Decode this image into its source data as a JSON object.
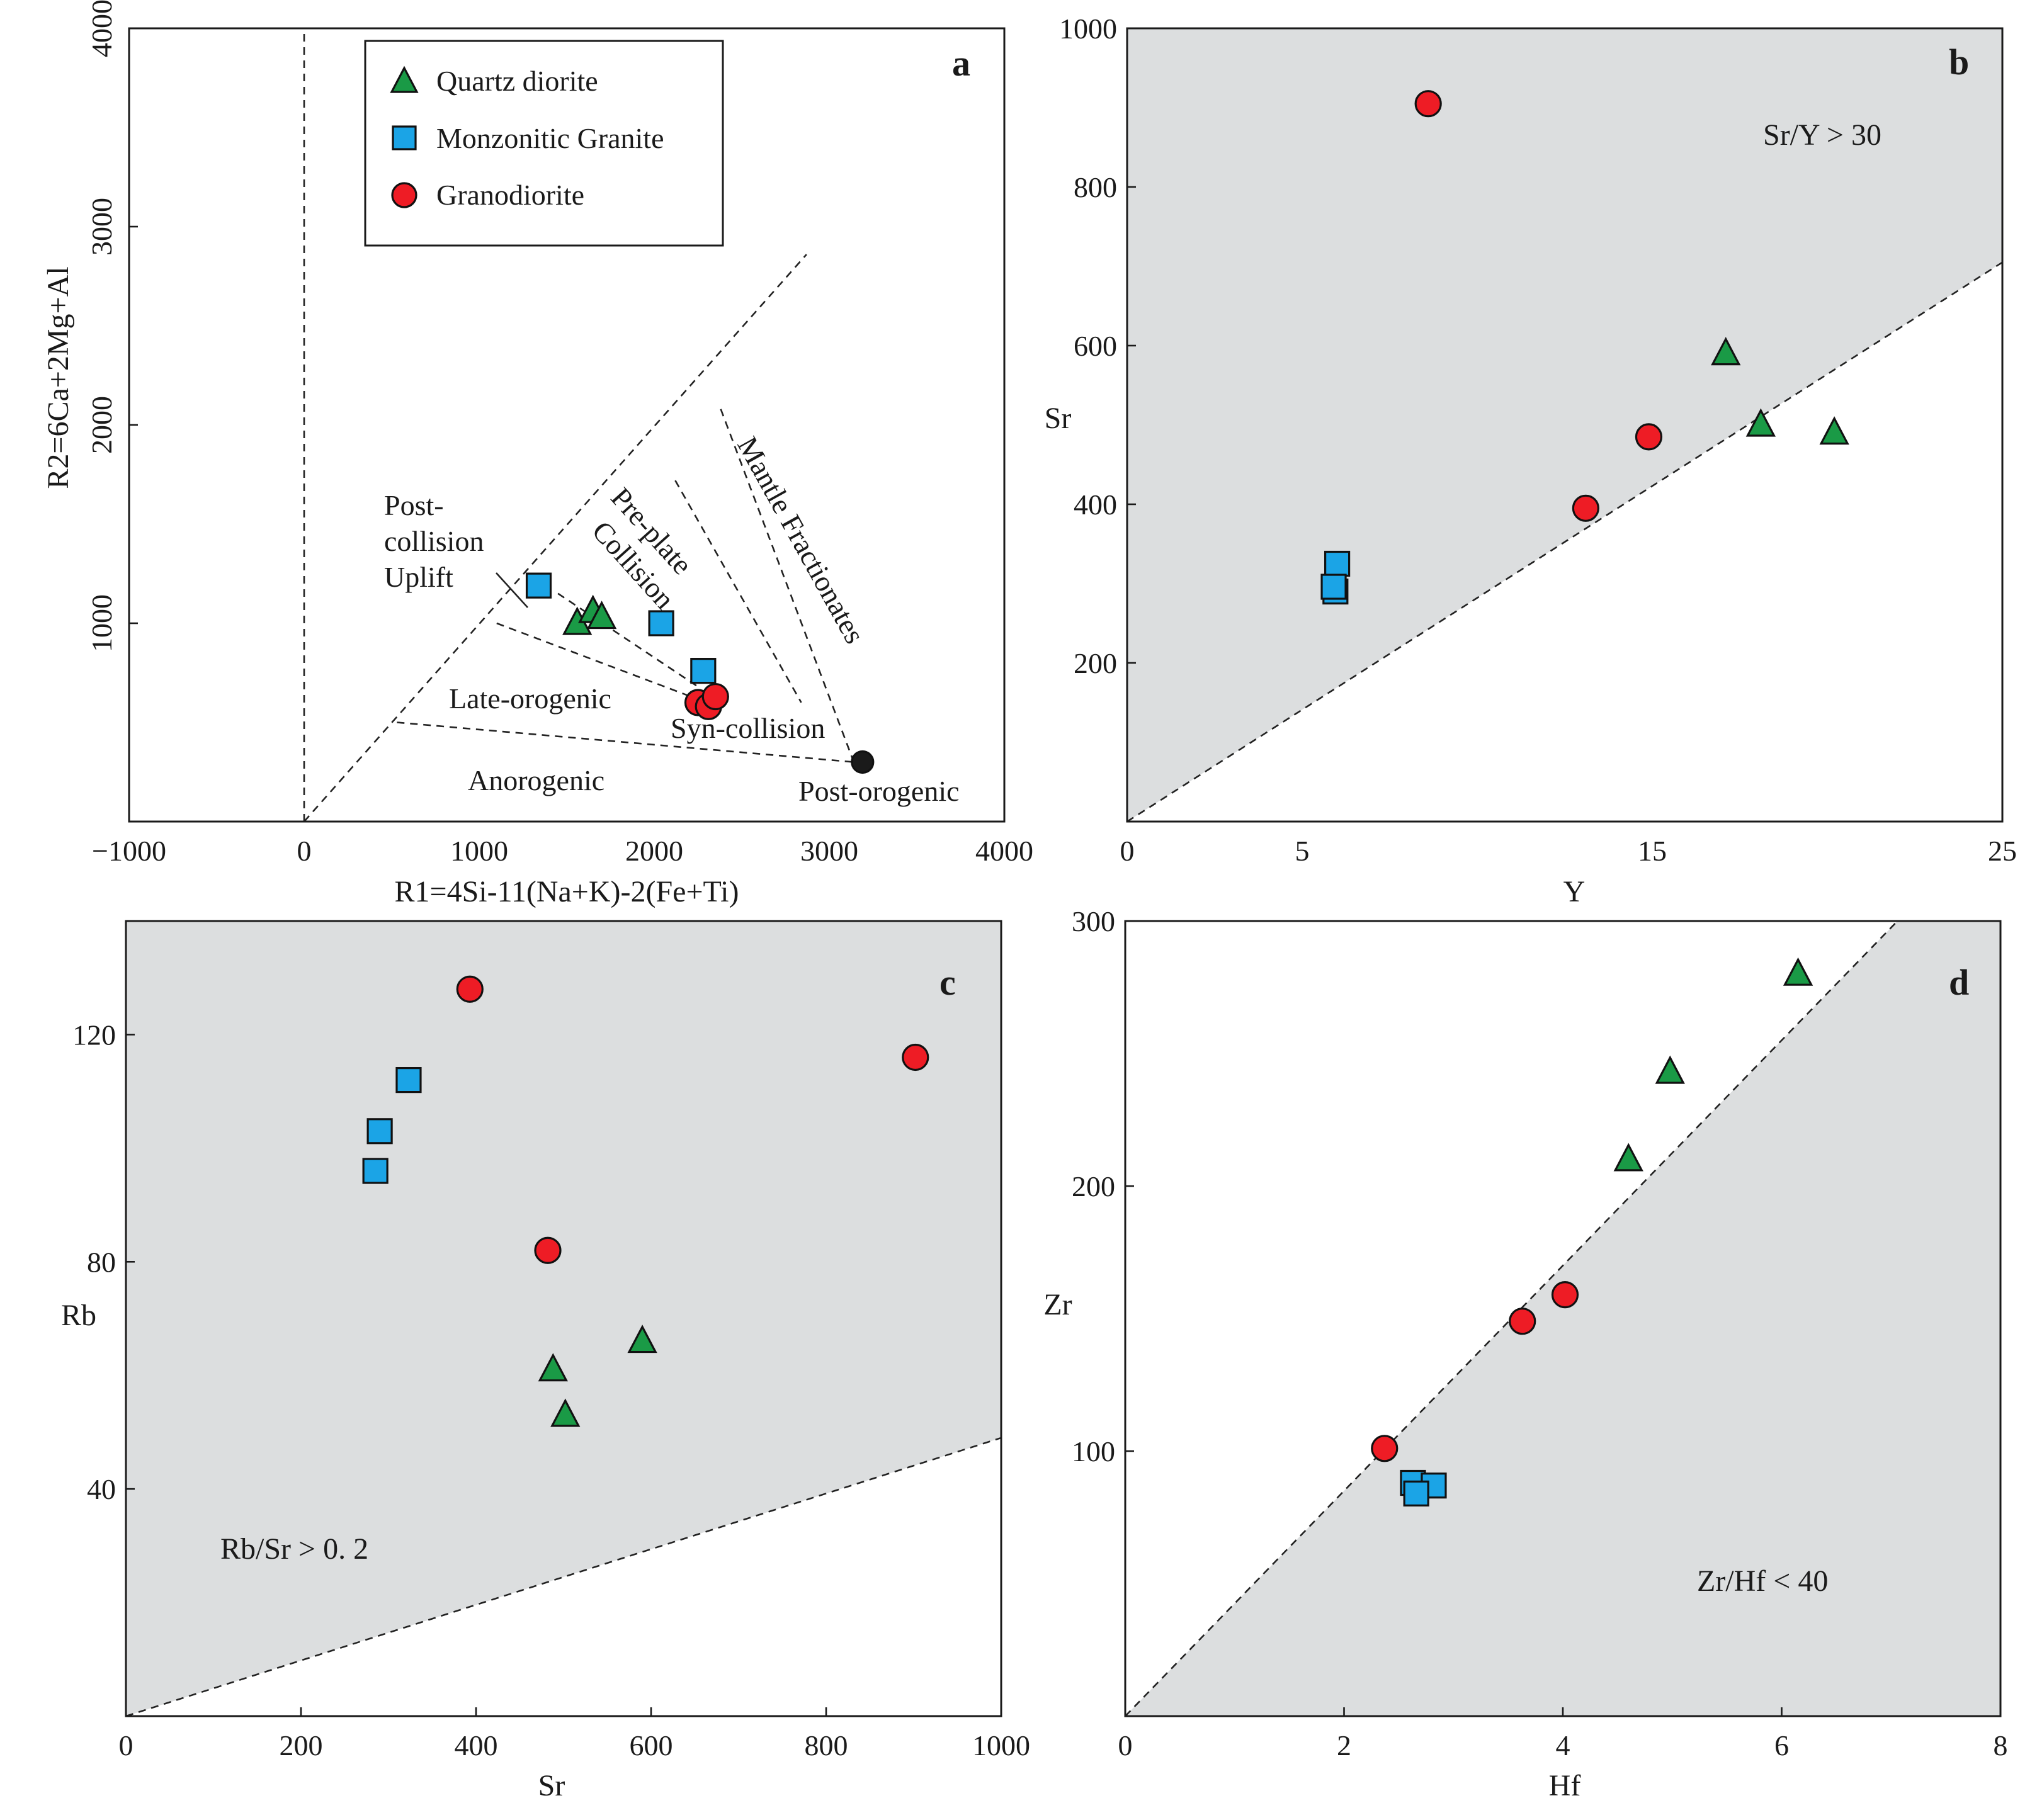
{
  "colors": {
    "quartz_diorite": "#1a9a46",
    "monzonitic_granite": "#1ba4e6",
    "granodiorite": "#ee1c25",
    "post_orogenic": "#1a1a1a",
    "shade": "#dcdedf"
  },
  "legend": {
    "items": [
      {
        "key": "quartz_diorite",
        "label": "Quartz diorite",
        "marker": "triangle-icon"
      },
      {
        "key": "monzonitic_granite",
        "label": "Monzonitic Granite",
        "marker": "square-icon"
      },
      {
        "key": "granodiorite",
        "label": "Granodiorite",
        "marker": "circle-icon"
      }
    ]
  },
  "chart_data": [
    {
      "id": "a",
      "panel_label": "a",
      "type": "scatter",
      "xlabel": "R1=4Si-11(Na+K)-2(Fe+Ti)",
      "ylabel": "R2=6Ca+2Mg+Al",
      "xlim": [
        -1000,
        4000
      ],
      "ylim": [
        0,
        4000
      ],
      "xticks": [
        "−1000",
        "0",
        "1000",
        "2000",
        "3000",
        "4000"
      ],
      "yticks": [
        "1000",
        "2000",
        "3000",
        "4000"
      ],
      "region_labels": {
        "post_collision_1": "Post-",
        "post_collision_2": "collision",
        "post_collision_3": "Uplift",
        "pre_plate_1": "Pre-plate",
        "pre_plate_2": "Collision",
        "mantle": "Mantle Fractionates",
        "late_orogenic": "Late-orogenic",
        "syn_collision": "Syn-collision",
        "anorogenic": "Anorogenic",
        "post_orogenic": "Post-orogenic"
      },
      "series": [
        {
          "name": "Quartz diorite",
          "key": "quartz_diorite",
          "points": [
            [
              1560,
              1000
            ],
            [
              1650,
              1060
            ],
            [
              1700,
              1030
            ]
          ]
        },
        {
          "name": "Monzonitic Granite",
          "key": "monzonitic_granite",
          "points": [
            [
              1340,
              1190
            ],
            [
              2040,
              1000
            ],
            [
              2280,
              760
            ]
          ]
        },
        {
          "name": "Granodiorite",
          "key": "granodiorite",
          "points": [
            [
              2250,
              600
            ],
            [
              2310,
              580
            ],
            [
              2350,
              630
            ]
          ]
        },
        {
          "name": "Post-orogenic",
          "key": "post_orogenic",
          "points": [
            [
              3190,
              300
            ]
          ]
        }
      ]
    },
    {
      "id": "b",
      "panel_label": "b",
      "type": "scatter",
      "xlabel": "Y",
      "ylabel": "Sr",
      "xlim": [
        0,
        25
      ],
      "ylim": [
        0,
        1000
      ],
      "xticks": [
        "0",
        "5",
        "15",
        "25"
      ],
      "yticks": [
        "200",
        "400",
        "600",
        "800",
        "1000"
      ],
      "annotation": "Sr/Y > 30",
      "series": [
        {
          "name": "Quartz diorite",
          "key": "quartz_diorite",
          "points": [
            [
              17.1,
              590
            ],
            [
              18.1,
              500
            ],
            [
              20.2,
              490
            ]
          ]
        },
        {
          "name": "Monzonitic Granite",
          "key": "monzonitic_granite",
          "points": [
            [
              6.0,
              325
            ],
            [
              5.95,
              290
            ],
            [
              5.9,
              296
            ]
          ]
        },
        {
          "name": "Granodiorite",
          "key": "granodiorite",
          "points": [
            [
              8.6,
              905
            ],
            [
              14.9,
              485
            ],
            [
              13.1,
              395
            ]
          ]
        }
      ]
    },
    {
      "id": "c",
      "panel_label": "c",
      "type": "scatter",
      "xlabel": "Sr",
      "ylabel": "Rb",
      "xlim": [
        0,
        1000
      ],
      "ylim": [
        0,
        140
      ],
      "xticks": [
        "0",
        "200",
        "400",
        "600",
        "800",
        "1000"
      ],
      "yticks": [
        "40",
        "80",
        "120"
      ],
      "annotation": "Rb/Sr > 0. 2",
      "series": [
        {
          "name": "Quartz diorite",
          "key": "quartz_diorite",
          "points": [
            [
              488,
              61
            ],
            [
              502,
              53
            ],
            [
              590,
              66
            ]
          ]
        },
        {
          "name": "Monzonitic Granite",
          "key": "monzonitic_granite",
          "points": [
            [
              323,
              112
            ],
            [
              290,
              103
            ],
            [
              285,
              96
            ]
          ]
        },
        {
          "name": "Granodiorite",
          "key": "granodiorite",
          "points": [
            [
              393,
              128
            ],
            [
              482,
              82
            ],
            [
              902,
              116
            ]
          ]
        }
      ]
    },
    {
      "id": "d",
      "panel_label": "d",
      "type": "scatter",
      "xlabel": "Hf",
      "ylabel": "Zr",
      "xlim": [
        0,
        8
      ],
      "ylim": [
        0,
        300
      ],
      "xticks": [
        "0",
        "2",
        "4",
        "6",
        "8"
      ],
      "yticks": [
        "100",
        "200",
        "300"
      ],
      "annotation": "Zr/Hf < 40",
      "series": [
        {
          "name": "Quartz diorite",
          "key": "quartz_diorite",
          "points": [
            [
              6.15,
              280
            ],
            [
              4.98,
              243
            ],
            [
              4.6,
              210
            ]
          ]
        },
        {
          "name": "Monzonitic Granite",
          "key": "monzonitic_granite",
          "points": [
            [
              2.63,
              88
            ],
            [
              2.82,
              87
            ],
            [
              2.66,
              84
            ]
          ]
        },
        {
          "name": "Granodiorite",
          "key": "granodiorite",
          "points": [
            [
              2.37,
              101
            ],
            [
              3.63,
              149
            ],
            [
              4.02,
              159
            ]
          ]
        }
      ]
    }
  ]
}
